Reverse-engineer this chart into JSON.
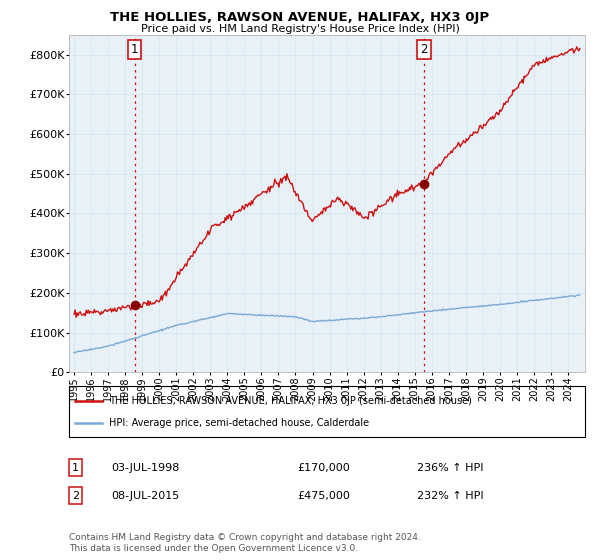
{
  "title": "THE HOLLIES, RAWSON AVENUE, HALIFAX, HX3 0JP",
  "subtitle": "Price paid vs. HM Land Registry's House Price Index (HPI)",
  "legend_line1": "THE HOLLIES, RAWSON AVENUE, HALIFAX, HX3 0JP (semi-detached house)",
  "legend_line2": "HPI: Average price, semi-detached house, Calderdale",
  "annotation1_date": "03-JUL-1998",
  "annotation1_price": "£170,000",
  "annotation1_hpi": "236% ↑ HPI",
  "annotation2_date": "08-JUL-2015",
  "annotation2_price": "£475,000",
  "annotation2_hpi": "232% ↑ HPI",
  "footnote": "Contains HM Land Registry data © Crown copyright and database right 2024.\nThis data is licensed under the Open Government Licence v3.0.",
  "sale1_year": 1998.55,
  "sale1_value": 170000,
  "sale2_year": 2015.55,
  "sale2_value": 475000,
  "hpi_color": "#7aaad4",
  "price_color": "#cc1111",
  "sale_dot_color": "#880000",
  "vline_color": "#cc1111",
  "grid_color": "#d8e8f0",
  "bg_color": "#ffffff",
  "plot_bg_color": "#e8f0f8",
  "ylim_min": 0,
  "ylim_max": 850000,
  "xlim_min": 1994.7,
  "xlim_max": 2025.0
}
